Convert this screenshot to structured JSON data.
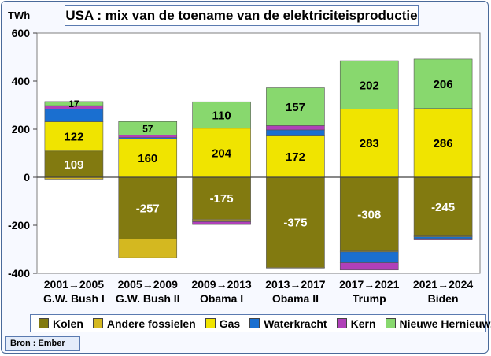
{
  "title": "USA : mix van de toename van de elektriciteisproductie",
  "source": "Bron : Ember",
  "colors": {
    "Kolen": "#827a10",
    "Andere fossielen": "#d4b820",
    "Gas": "#f0e400",
    "Waterkracht": "#1a6fd0",
    "Kern": "#b040b8",
    "Nieuwe Hernieuw.": "#88d86e"
  },
  "chart_data": {
    "type": "bar",
    "stacked": true,
    "ylabel": "TWh",
    "ylim": [
      -400,
      600
    ],
    "yticks": [
      -400,
      -200,
      0,
      200,
      400,
      600
    ],
    "yticks_labels": [
      "-400",
      "-200",
      "0",
      "200",
      "400",
      "600"
    ],
    "grid": false,
    "legend": "bottom",
    "categories": [
      {
        "line1": "2001→2005",
        "line2": "G.W. Bush I"
      },
      {
        "line1": "2005→2009",
        "line2": "G.W. Bush II"
      },
      {
        "line1": "2009→2013",
        "line2": "Obama I"
      },
      {
        "line1": "2013→2017",
        "line2": "Obama II"
      },
      {
        "line1": "2017→2021",
        "line2": "Trump"
      },
      {
        "line1": "2021→2024",
        "line2": "Biden"
      }
    ],
    "series": [
      {
        "name": "Kolen",
        "values": [
          109,
          -257,
          -175,
          -375,
          -308,
          -245
        ]
      },
      {
        "name": "Andere fossielen",
        "values": [
          -8,
          -78,
          -5,
          -3,
          -3,
          -3
        ]
      },
      {
        "name": "Gas",
        "values": [
          122,
          160,
          204,
          172,
          283,
          286
        ]
      },
      {
        "name": "Waterkracht",
        "values": [
          52,
          5,
          -5,
          25,
          -45,
          -8
        ]
      },
      {
        "name": "Kern",
        "values": [
          15,
          10,
          -12,
          18,
          -30,
          -5
        ]
      },
      {
        "name": "Nieuwe Hernieuw.",
        "values": [
          17,
          57,
          110,
          157,
          202,
          206
        ]
      }
    ],
    "data_labels": [
      {
        "category": 0,
        "series": "Kolen",
        "text": "109"
      },
      {
        "category": 0,
        "series": "Gas",
        "text": "122"
      },
      {
        "category": 0,
        "series": "Nieuwe Hernieuw.",
        "text": "17"
      },
      {
        "category": 1,
        "series": "Kolen",
        "text": "-257"
      },
      {
        "category": 1,
        "series": "Gas",
        "text": "160"
      },
      {
        "category": 1,
        "series": "Nieuwe Hernieuw.",
        "text": "57"
      },
      {
        "category": 2,
        "series": "Kolen",
        "text": "-175"
      },
      {
        "category": 2,
        "series": "Gas",
        "text": "204"
      },
      {
        "category": 2,
        "series": "Nieuwe Hernieuw.",
        "text": "110"
      },
      {
        "category": 3,
        "series": "Kolen",
        "text": "-375"
      },
      {
        "category": 3,
        "series": "Gas",
        "text": "172"
      },
      {
        "category": 3,
        "series": "Nieuwe Hernieuw.",
        "text": "157"
      },
      {
        "category": 4,
        "series": "Kolen",
        "text": "-308"
      },
      {
        "category": 4,
        "series": "Gas",
        "text": "283"
      },
      {
        "category": 4,
        "series": "Nieuwe Hernieuw.",
        "text": "202"
      },
      {
        "category": 5,
        "series": "Kolen",
        "text": "-245"
      },
      {
        "category": 5,
        "series": "Gas",
        "text": "286"
      },
      {
        "category": 5,
        "series": "Nieuwe Hernieuw.",
        "text": "206"
      }
    ]
  }
}
